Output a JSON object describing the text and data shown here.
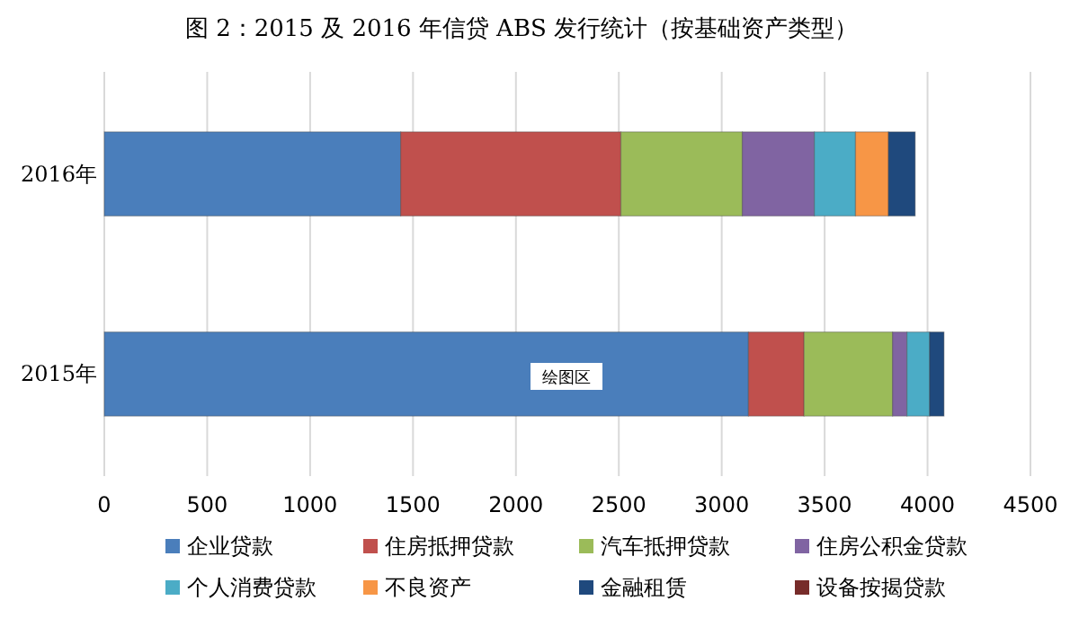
{
  "chart_data": {
    "type": "bar",
    "orientation": "horizontal",
    "stacked": true,
    "title": "图 2：2015 及 2016 年信贷 ABS 发行统计（按基础资产类型）",
    "categories": [
      "2016年",
      "2015年"
    ],
    "series": [
      {
        "name": "企业贷款",
        "color": "#4a7ebb",
        "values": [
          1440,
          3130
        ]
      },
      {
        "name": "住房抵押贷款",
        "color": "#c0504d",
        "values": [
          1070,
          270
        ]
      },
      {
        "name": "汽车抵押贷款",
        "color": "#9bbb59",
        "values": [
          590,
          430
        ]
      },
      {
        "name": "住房公积金贷款",
        "color": "#8064a2",
        "values": [
          350,
          70
        ]
      },
      {
        "name": "个人消费贷款",
        "color": "#4bacc6",
        "values": [
          200,
          110
        ]
      },
      {
        "name": "不良资产",
        "color": "#f79646",
        "values": [
          160,
          0
        ]
      },
      {
        "name": "金融租赁",
        "color": "#1f497d",
        "values": [
          130,
          70
        ]
      },
      {
        "name": "设备按揭贷款",
        "color": "#772c2a",
        "values": [
          0,
          0
        ]
      }
    ],
    "xlim": [
      0,
      4500
    ],
    "xticks": [
      0,
      500,
      1000,
      1500,
      2000,
      2500,
      3000,
      3500,
      4000,
      4500
    ],
    "grid": "x",
    "legend": "bottom",
    "annotations": [
      "绘图区"
    ]
  }
}
